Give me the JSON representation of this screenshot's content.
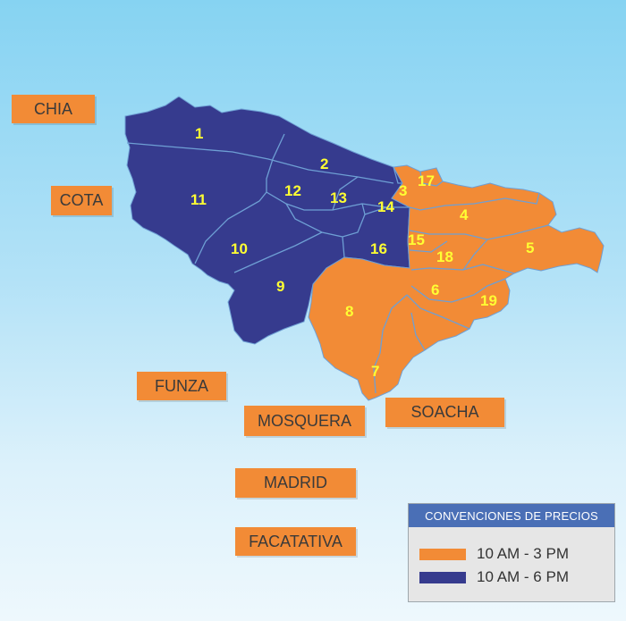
{
  "colors": {
    "schedule_a": "#f28b36",
    "schedule_b": "#363b8e",
    "boundary": "#6e9fd4",
    "zone_label": "#ffff33"
  },
  "zones": [
    {
      "id": "1",
      "label": "1",
      "schedule": "b"
    },
    {
      "id": "2",
      "label": "2",
      "schedule": "b"
    },
    {
      "id": "3",
      "label": "3",
      "schedule": "a"
    },
    {
      "id": "4",
      "label": "4",
      "schedule": "a"
    },
    {
      "id": "5",
      "label": "5",
      "schedule": "a"
    },
    {
      "id": "6",
      "label": "6",
      "schedule": "a"
    },
    {
      "id": "7",
      "label": "7",
      "schedule": "a"
    },
    {
      "id": "8",
      "label": "8",
      "schedule": "a"
    },
    {
      "id": "9",
      "label": "9",
      "schedule": "b"
    },
    {
      "id": "10",
      "label": "10",
      "schedule": "b"
    },
    {
      "id": "11",
      "label": "11",
      "schedule": "b"
    },
    {
      "id": "12",
      "label": "12",
      "schedule": "b"
    },
    {
      "id": "13",
      "label": "13",
      "schedule": "b"
    },
    {
      "id": "14",
      "label": "14",
      "schedule": "b"
    },
    {
      "id": "15",
      "label": "15",
      "schedule": "a"
    },
    {
      "id": "16",
      "label": "16",
      "schedule": "b"
    },
    {
      "id": "17",
      "label": "17",
      "schedule": "a"
    },
    {
      "id": "18",
      "label": "18",
      "schedule": "a"
    },
    {
      "id": "19",
      "label": "19",
      "schedule": "a"
    }
  ],
  "towns": {
    "chia": "CHIA",
    "cota": "COTA",
    "funza": "FUNZA",
    "mosquera": "MOSQUERA",
    "soacha": "SOACHA",
    "madrid": "MADRID",
    "facatativa": "FACATATIVA"
  },
  "legend": {
    "title": "CONVENCIONES DE PRECIOS",
    "items": [
      {
        "label": "10 AM - 3 PM",
        "color": "#f28b36"
      },
      {
        "label": "10 AM - 6 PM",
        "color": "#363b8e"
      }
    ]
  }
}
